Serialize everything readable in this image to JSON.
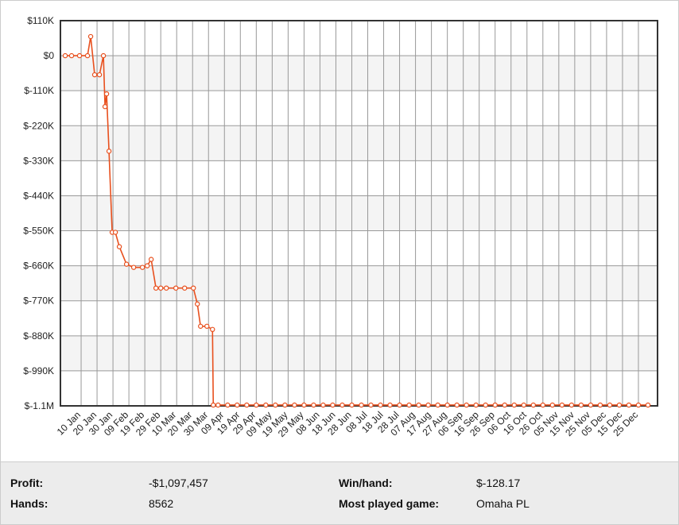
{
  "chart_data": {
    "type": "line",
    "x": [
      0,
      4,
      9,
      14,
      16,
      18.5,
      21.5,
      24,
      25,
      26,
      27.5,
      29.5,
      31.5,
      34,
      38.5,
      43,
      48.5,
      51.5,
      54,
      57,
      60,
      63.5,
      69.5,
      75,
      80.5,
      83,
      85,
      89,
      92.5,
      93,
      96,
      102,
      108,
      114,
      120,
      126,
      132,
      138,
      144,
      150,
      156,
      162,
      168,
      174,
      180,
      186,
      192,
      198,
      204,
      210,
      216,
      222,
      228,
      234,
      240,
      246,
      252,
      258,
      264,
      270,
      276,
      282,
      288,
      294,
      300,
      306,
      312,
      318,
      324,
      330,
      336,
      342,
      348,
      354,
      360,
      366
    ],
    "series": [
      {
        "name": "Profit",
        "color": "#e8501e",
        "values": [
          0,
          0,
          0,
          0,
          60000,
          -60000,
          -60000,
          0,
          -160000,
          -120000,
          -300000,
          -555000,
          -555000,
          -600000,
          -655000,
          -665000,
          -665000,
          -660000,
          -640000,
          -730000,
          -730000,
          -730000,
          -730000,
          -730000,
          -730000,
          -780000,
          -850000,
          -850000,
          -860000,
          -1097457,
          -1097457,
          -1097457,
          -1097457,
          -1097457,
          -1097457,
          -1097457,
          -1097457,
          -1097457,
          -1097457,
          -1097457,
          -1097457,
          -1097457,
          -1097457,
          -1097457,
          -1097457,
          -1097457,
          -1097457,
          -1097457,
          -1097457,
          -1097457,
          -1097457,
          -1097457,
          -1097457,
          -1097457,
          -1097457,
          -1097457,
          -1097457,
          -1097457,
          -1097457,
          -1097457,
          -1097457,
          -1097457,
          -1097457,
          -1097457,
          -1097457,
          -1097457,
          -1097457,
          -1097457,
          -1097457,
          -1097457,
          -1097457,
          -1097457,
          -1097457,
          -1097457,
          -1097457,
          -1097457
        ]
      }
    ],
    "xlim": [
      -3,
      372
    ],
    "xticks": [
      {
        "value": 10,
        "label": "10 Jan"
      },
      {
        "value": 20,
        "label": "20 Jan"
      },
      {
        "value": 30,
        "label": "30 Jan"
      },
      {
        "value": 40,
        "label": "09 Feb"
      },
      {
        "value": 50,
        "label": "19 Feb"
      },
      {
        "value": 60,
        "label": "29 Feb"
      },
      {
        "value": 70,
        "label": "10 Mar"
      },
      {
        "value": 80,
        "label": "20 Mar"
      },
      {
        "value": 90,
        "label": "30 Mar"
      },
      {
        "value": 100,
        "label": "09 Apr"
      },
      {
        "value": 110,
        "label": "19 Apr"
      },
      {
        "value": 120,
        "label": "29 Apr"
      },
      {
        "value": 130,
        "label": "09 May"
      },
      {
        "value": 140,
        "label": "19 May"
      },
      {
        "value": 150,
        "label": "29 May"
      },
      {
        "value": 160,
        "label": "08 Jun"
      },
      {
        "value": 170,
        "label": "18 Jun"
      },
      {
        "value": 180,
        "label": "28 Jun"
      },
      {
        "value": 190,
        "label": "08 Jul"
      },
      {
        "value": 200,
        "label": "18 Jul"
      },
      {
        "value": 210,
        "label": "28 Jul"
      },
      {
        "value": 220,
        "label": "07 Aug"
      },
      {
        "value": 230,
        "label": "17 Aug"
      },
      {
        "value": 240,
        "label": "27 Aug"
      },
      {
        "value": 250,
        "label": "06 Sep"
      },
      {
        "value": 260,
        "label": "16 Sep"
      },
      {
        "value": 270,
        "label": "26 Sep"
      },
      {
        "value": 280,
        "label": "06 Oct"
      },
      {
        "value": 290,
        "label": "16 Oct"
      },
      {
        "value": 300,
        "label": "26 Oct"
      },
      {
        "value": 310,
        "label": "05 Nov"
      },
      {
        "value": 320,
        "label": "15 Nov"
      },
      {
        "value": 330,
        "label": "25 Nov"
      },
      {
        "value": 340,
        "label": "05 Dec"
      },
      {
        "value": 350,
        "label": "15 Dec"
      },
      {
        "value": 360,
        "label": "25 Dec"
      }
    ],
    "ylim": [
      -1100000,
      110000
    ],
    "yticks": [
      {
        "value": 110000,
        "label": "$110K"
      },
      {
        "value": 0,
        "label": "$0"
      },
      {
        "value": -110000,
        "label": "$-110K"
      },
      {
        "value": -220000,
        "label": "$-220K"
      },
      {
        "value": -330000,
        "label": "$-330K"
      },
      {
        "value": -440000,
        "label": "$-440K"
      },
      {
        "value": -550000,
        "label": "$-550K"
      },
      {
        "value": -660000,
        "label": "$-660K"
      },
      {
        "value": -770000,
        "label": "$-770K"
      },
      {
        "value": -880000,
        "label": "$-880K"
      },
      {
        "value": -990000,
        "label": "$-990K"
      },
      {
        "value": -1100000,
        "label": "$-1.1M"
      }
    ],
    "grid": true
  },
  "stats": [
    {
      "label": "Profit:",
      "value": "-$1,097,457"
    },
    {
      "label": "Hands:",
      "value": "8562"
    },
    {
      "label": "Win/hand:",
      "value": "$-128.17"
    },
    {
      "label": "Most played game:",
      "value": "Omaha PL"
    }
  ]
}
